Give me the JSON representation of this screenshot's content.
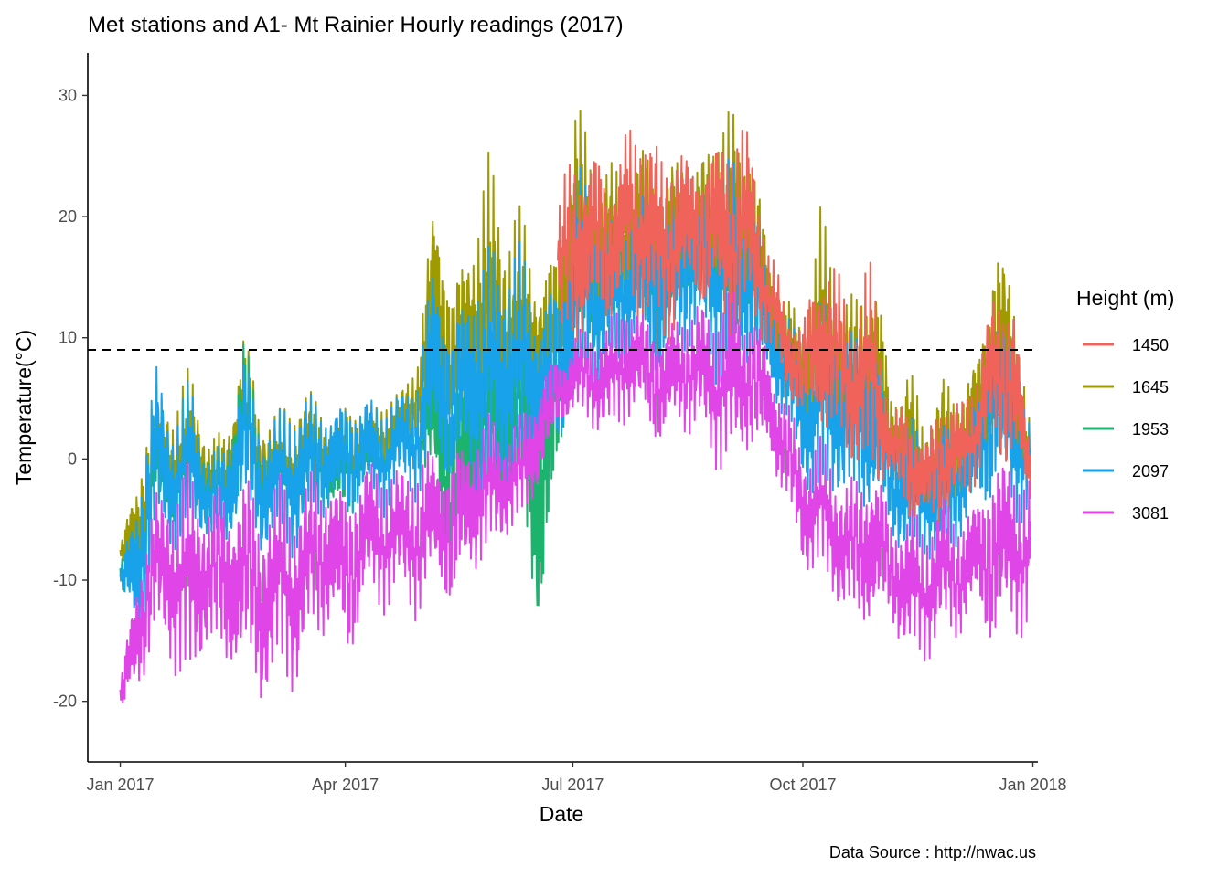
{
  "chart_data": {
    "type": "line",
    "title": "Met stations and A1-  Mt Rainier Hourly readings (2017)",
    "xlabel": "Date",
    "ylabel": "Temperature(°C)",
    "caption": "Data Source : http://nwac.us",
    "legend_title": "Height (m)",
    "legend_position": "right",
    "grid": false,
    "xlim": [
      "2016-12-19",
      "2018-01-03"
    ],
    "ylim": [
      -25,
      33.5
    ],
    "x_ticks": [
      {
        "date": "2017-01-01",
        "label": "Jan 2017"
      },
      {
        "date": "2017-04-01",
        "label": "Apr 2017"
      },
      {
        "date": "2017-07-01",
        "label": "Jul 2017"
      },
      {
        "date": "2017-10-01",
        "label": "Oct 2017"
      },
      {
        "date": "2018-01-01",
        "label": "Jan 2018"
      }
    ],
    "y_ticks": [
      {
        "value": 30,
        "label": "30"
      },
      {
        "value": 20,
        "label": "20"
      },
      {
        "value": 10,
        "label": "10"
      },
      {
        "value": 0,
        "label": "0"
      },
      {
        "value": -10,
        "label": "-10"
      },
      {
        "value": -20,
        "label": "-20"
      }
    ],
    "reference_line": {
      "y": 9,
      "style": "dashed",
      "color": "#000000"
    },
    "series": [
      {
        "name": "1645",
        "color": "#9E9A00",
        "x": [
          "2017-01-01",
          "2017-01-08",
          "2017-01-15",
          "2017-01-22",
          "2017-01-29",
          "2017-02-05",
          "2017-02-12",
          "2017-02-19",
          "2017-02-26",
          "2017-03-05",
          "2017-03-12",
          "2017-03-19",
          "2017-03-26",
          "2017-04-02",
          "2017-04-09",
          "2017-04-16",
          "2017-04-23",
          "2017-04-30",
          "2017-05-07",
          "2017-05-14",
          "2017-05-21",
          "2017-05-28",
          "2017-06-04",
          "2017-06-11",
          "2017-06-18",
          "2017-06-25",
          "2017-07-02",
          "2017-07-09",
          "2017-07-16",
          "2017-07-23",
          "2017-07-30",
          "2017-08-06",
          "2017-08-13",
          "2017-08-20",
          "2017-08-27",
          "2017-09-03",
          "2017-09-10",
          "2017-09-17",
          "2017-09-24",
          "2017-10-01",
          "2017-10-08",
          "2017-10-15",
          "2017-10-22",
          "2017-10-29",
          "2017-11-05",
          "2017-11-12",
          "2017-11-19",
          "2017-11-26",
          "2017-12-03",
          "2017-12-10",
          "2017-12-17",
          "2017-12-24",
          "2017-12-31"
        ],
        "min": [
          -9,
          -12,
          -4,
          -6,
          -5,
          -4,
          -7,
          -3,
          -6,
          -5,
          -7,
          -2,
          -3,
          -4,
          -2,
          -1,
          0,
          2,
          4,
          1,
          2,
          0,
          -1,
          1,
          3,
          6,
          8,
          9,
          10,
          12,
          10,
          8,
          11,
          12,
          10,
          8,
          10,
          9,
          6,
          2,
          1,
          0,
          -2,
          -3,
          -2,
          -6,
          -7,
          -8,
          -4,
          -2,
          0,
          -2,
          -4
        ],
        "max": [
          -7,
          0,
          7,
          5,
          8,
          2,
          3,
          12,
          5,
          4,
          6,
          6,
          4,
          6,
          5,
          5,
          6,
          9,
          24,
          15,
          20,
          26,
          22,
          21,
          16,
          18,
          31,
          26,
          25,
          24,
          28,
          25,
          27,
          25,
          29,
          30,
          28,
          18,
          14,
          12,
          21,
          16,
          14,
          20,
          6,
          9,
          3,
          8,
          6,
          10,
          20,
          16,
          3
        ]
      },
      {
        "name": "1953",
        "color": "#1CB36D",
        "x": [
          "2017-01-01",
          "2017-01-08",
          "2017-01-15",
          "2017-01-22",
          "2017-01-29",
          "2017-02-05",
          "2017-02-12",
          "2017-02-19",
          "2017-02-26",
          "2017-03-05",
          "2017-03-12",
          "2017-03-19",
          "2017-03-26",
          "2017-04-02",
          "2017-04-09",
          "2017-04-16",
          "2017-04-23",
          "2017-04-30",
          "2017-05-07",
          "2017-05-14",
          "2017-05-21",
          "2017-05-28",
          "2017-06-04",
          "2017-06-11",
          "2017-06-18",
          "2017-06-25",
          "2017-07-02",
          "2017-07-09",
          "2017-07-16",
          "2017-07-23",
          "2017-07-30",
          "2017-08-06",
          "2017-08-13",
          "2017-08-20",
          "2017-08-27",
          "2017-09-03",
          "2017-09-10",
          "2017-09-17"
        ],
        "min": [
          -12,
          -14,
          -6,
          -8,
          -6,
          -6,
          -9,
          -5,
          -8,
          -6,
          -8,
          -4,
          -5,
          -6,
          -3,
          -3,
          -1,
          -2,
          -4,
          -14,
          -9,
          -6,
          -8,
          -6,
          -18,
          -2,
          4,
          6,
          7,
          9,
          8,
          6,
          9,
          10,
          8,
          6,
          8,
          6
        ],
        "max": [
          -8,
          -4,
          4,
          3,
          6,
          1,
          2,
          12,
          4,
          3,
          4,
          4,
          2,
          4,
          3,
          3,
          5,
          5,
          12,
          8,
          10,
          12,
          14,
          13,
          10,
          12,
          24,
          19,
          18,
          20,
          22,
          20,
          22,
          21,
          24,
          22,
          21,
          16
        ]
      },
      {
        "name": "2097",
        "color": "#17A2EA",
        "x": [
          "2017-01-01",
          "2017-01-08",
          "2017-01-15",
          "2017-01-22",
          "2017-01-29",
          "2017-02-05",
          "2017-02-12",
          "2017-02-19",
          "2017-02-26",
          "2017-03-05",
          "2017-03-12",
          "2017-03-19",
          "2017-03-26",
          "2017-04-02",
          "2017-04-09",
          "2017-04-16",
          "2017-04-23",
          "2017-04-30",
          "2017-05-07",
          "2017-05-14",
          "2017-05-21",
          "2017-05-28",
          "2017-06-04",
          "2017-06-11",
          "2017-06-18",
          "2017-06-25",
          "2017-07-02",
          "2017-07-09",
          "2017-07-16",
          "2017-07-23",
          "2017-07-30",
          "2017-08-06",
          "2017-08-13",
          "2017-08-20",
          "2017-08-27",
          "2017-09-03",
          "2017-09-10",
          "2017-09-17",
          "2017-09-24",
          "2017-10-01",
          "2017-10-08",
          "2017-10-15",
          "2017-10-22",
          "2017-10-29",
          "2017-11-05",
          "2017-11-12",
          "2017-11-19",
          "2017-11-26",
          "2017-12-03",
          "2017-12-10",
          "2017-12-17",
          "2017-12-24",
          "2017-12-31"
        ],
        "min": [
          -11,
          -17,
          -8,
          -8,
          -7,
          -7,
          -9,
          -5,
          -9,
          -7,
          -9,
          -6,
          -5,
          -6,
          -4,
          -5,
          -3,
          -4,
          -2,
          -4,
          -3,
          -5,
          -4,
          -3,
          -1,
          -2,
          3,
          5,
          6,
          8,
          7,
          5,
          8,
          9,
          6,
          5,
          7,
          5,
          2,
          -3,
          -5,
          -4,
          -6,
          -6,
          -7,
          -10,
          -8,
          -10,
          -7,
          -6,
          -4,
          -6,
          -5
        ],
        "max": [
          -9,
          -1,
          9,
          4,
          7,
          1,
          2,
          10,
          4,
          4,
          6,
          6,
          5,
          6,
          6,
          5,
          6,
          8,
          19,
          12,
          17,
          18,
          19,
          18,
          14,
          16,
          26,
          22,
          20,
          21,
          24,
          22,
          24,
          23,
          25,
          26,
          24,
          16,
          13,
          10,
          13,
          13,
          11,
          14,
          3,
          5,
          1,
          4,
          3,
          7,
          14,
          11,
          3
        ]
      },
      {
        "name": "1450",
        "color": "#F0635A",
        "x": [
          "2017-06-25",
          "2017-07-02",
          "2017-07-09",
          "2017-07-16",
          "2017-07-23",
          "2017-07-30",
          "2017-08-06",
          "2017-08-13",
          "2017-08-20",
          "2017-08-27",
          "2017-09-03",
          "2017-09-10",
          "2017-09-17",
          "2017-09-24",
          "2017-10-01",
          "2017-10-08",
          "2017-10-15",
          "2017-10-22",
          "2017-10-29",
          "2017-11-05",
          "2017-11-12",
          "2017-11-19",
          "2017-11-26",
          "2017-12-03",
          "2017-12-10",
          "2017-12-17",
          "2017-12-24",
          "2017-12-31"
        ],
        "min": [
          8,
          8,
          9,
          10,
          12,
          10,
          8,
          11,
          12,
          10,
          8,
          10,
          9,
          5,
          2,
          1,
          0,
          -2,
          -3,
          -2,
          -6,
          -6,
          -7,
          -4,
          -2,
          0,
          -2,
          -4
        ],
        "max": [
          22,
          27,
          27,
          25,
          28,
          29,
          26,
          27,
          26,
          28,
          29,
          28,
          18,
          14,
          12,
          19,
          16,
          14,
          17,
          4,
          6,
          2,
          7,
          5,
          8,
          16,
          14,
          2
        ]
      },
      {
        "name": "3081",
        "color": "#E045E8",
        "x": [
          "2017-01-01",
          "2017-01-08",
          "2017-01-15",
          "2017-01-22",
          "2017-01-29",
          "2017-02-05",
          "2017-02-12",
          "2017-02-19",
          "2017-02-26",
          "2017-03-05",
          "2017-03-12",
          "2017-03-19",
          "2017-03-26",
          "2017-04-02",
          "2017-04-09",
          "2017-04-16",
          "2017-04-23",
          "2017-04-30",
          "2017-05-07",
          "2017-05-14",
          "2017-05-21",
          "2017-05-28",
          "2017-06-04",
          "2017-06-11",
          "2017-06-18",
          "2017-06-25",
          "2017-07-02",
          "2017-07-09",
          "2017-07-16",
          "2017-07-23",
          "2017-07-30",
          "2017-08-06",
          "2017-08-13",
          "2017-08-20",
          "2017-08-27",
          "2017-09-03",
          "2017-09-10",
          "2017-09-17",
          "2017-09-24",
          "2017-10-01",
          "2017-10-08",
          "2017-10-15",
          "2017-10-22",
          "2017-10-29",
          "2017-11-05",
          "2017-11-12",
          "2017-11-19",
          "2017-11-26",
          "2017-12-03",
          "2017-12-10",
          "2017-12-17",
          "2017-12-24",
          "2017-12-31"
        ],
        "min": [
          -22,
          -20,
          -16,
          -18,
          -21,
          -16,
          -20,
          -18,
          -22,
          -19,
          -20,
          -16,
          -15,
          -18,
          -13,
          -13,
          -12,
          -14,
          -11,
          -14,
          -10,
          -9,
          -7,
          -6,
          -3,
          2,
          3,
          2,
          1,
          3,
          2,
          0,
          2,
          1,
          -1,
          -2,
          0,
          -1,
          -4,
          -10,
          -10,
          -13,
          -15,
          -15,
          -14,
          -18,
          -17,
          -16,
          -15,
          -14,
          -17,
          -15,
          -15
        ],
        "max": [
          -18,
          -8,
          -2,
          -1,
          0,
          -2,
          -1,
          0,
          -2,
          -1,
          -2,
          0,
          0,
          -1,
          1,
          0,
          0,
          1,
          2,
          2,
          3,
          4,
          3,
          4,
          8,
          9,
          11,
          11,
          12,
          14,
          13,
          12,
          13,
          14,
          13,
          15,
          14,
          10,
          6,
          2,
          2,
          0,
          -1,
          2,
          -4,
          -3,
          -5,
          -2,
          -4,
          -2,
          2,
          1,
          -1
        ]
      }
    ]
  },
  "legend": {
    "title": "Height (m)",
    "items": [
      {
        "label": "1450",
        "color": "#F0635A"
      },
      {
        "label": "1645",
        "color": "#9E9A00"
      },
      {
        "label": "1953",
        "color": "#1CB36D"
      },
      {
        "label": "2097",
        "color": "#17A2EA"
      },
      {
        "label": "3081",
        "color": "#E045E8"
      }
    ]
  }
}
